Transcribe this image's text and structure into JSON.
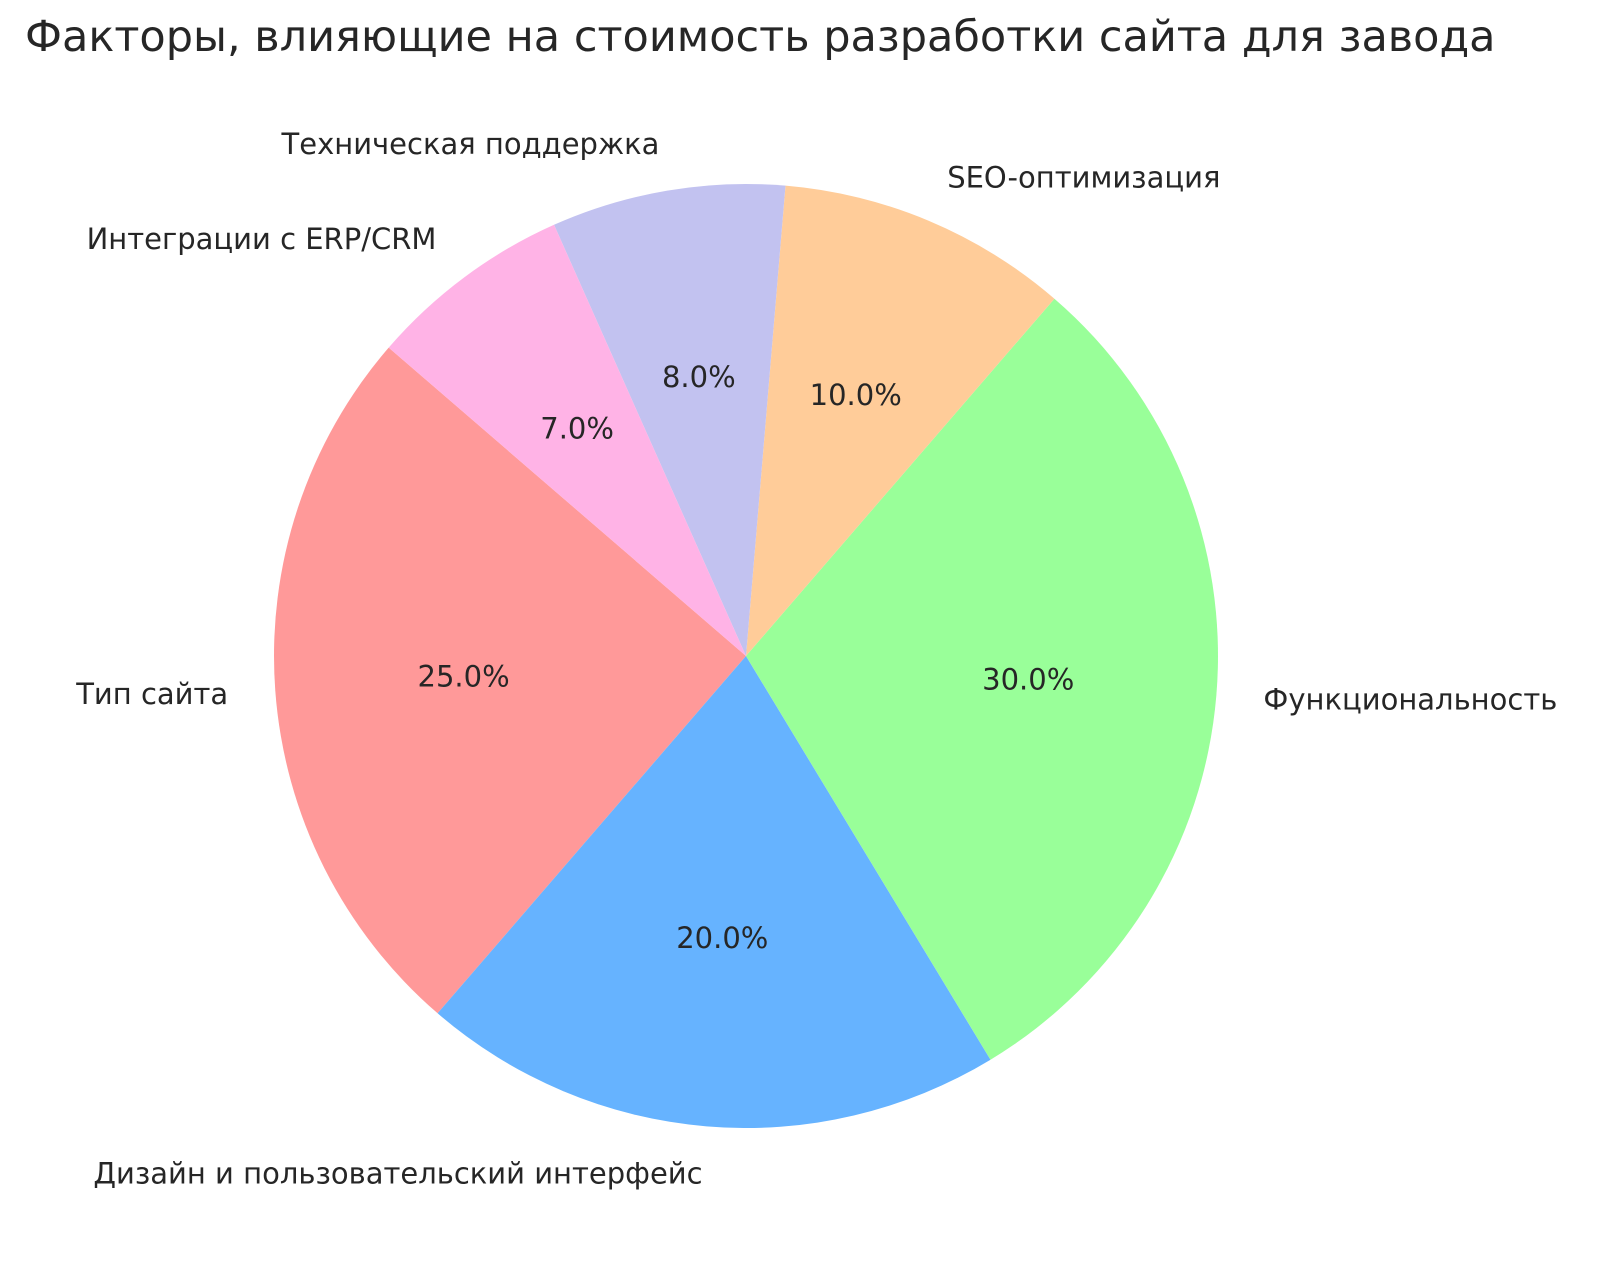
{
  "chart_data": {
    "type": "pie",
    "title": "Факторы, влияющие на стоимость разработки сайта для завода",
    "background_color": "#ffffff",
    "text_color": "#262626",
    "legend": false,
    "start_angle_deg": 139.2,
    "direction": "counterclockwise",
    "categories": [
      "Тип сайта",
      "Дизайн и пользовательский интерфейс",
      "Функциональность",
      "SEO-оптимизация",
      "Техническая поддержка",
      "Интеграции с ERP/CRM"
    ],
    "values": [
      25.0,
      20.0,
      30.0,
      10.0,
      8.0,
      7.0
    ],
    "slices": [
      {
        "label": "Тип сайта",
        "value": 25.0,
        "pct_label": "25.0%",
        "color": "#ff9999"
      },
      {
        "label": "Дизайн и пользовательский интерфейс",
        "value": 20.0,
        "pct_label": "20.0%",
        "color": "#66b3ff"
      },
      {
        "label": "Функциональность",
        "value": 30.0,
        "pct_label": "30.0%",
        "color": "#99ff99"
      },
      {
        "label": "SEO-оптимизация",
        "value": 10.0,
        "pct_label": "10.0%",
        "color": "#ffcc99"
      },
      {
        "label": "Техническая поддержка",
        "value": 8.0,
        "pct_label": "8.0%",
        "color": "#c2c2f0"
      },
      {
        "label": "Интеграции с ERP/CRM",
        "value": 7.0,
        "pct_label": "7.0%",
        "color": "#ffb3e6"
      }
    ]
  }
}
